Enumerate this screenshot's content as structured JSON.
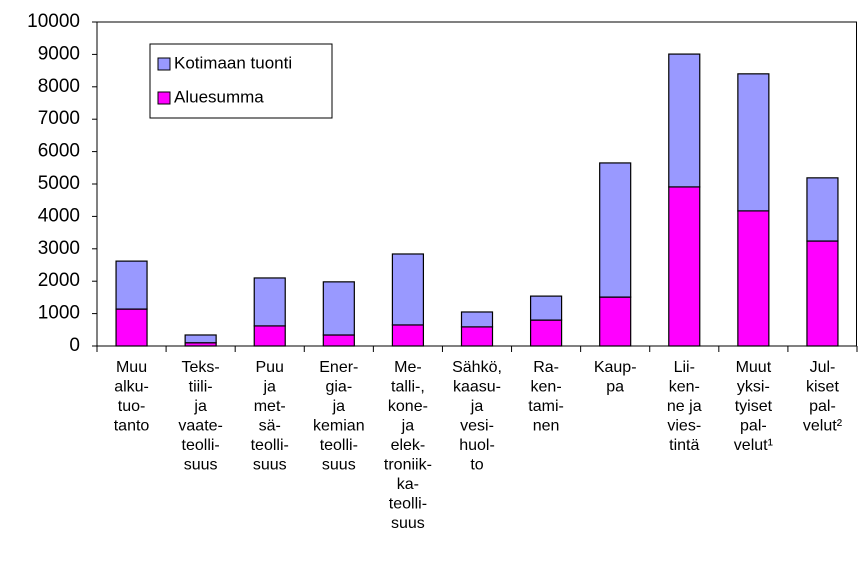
{
  "chart_data": {
    "type": "stacked_bar",
    "categories": [
      [
        "Muu",
        "alku-",
        "tuo-",
        "tanto"
      ],
      [
        "Teks-",
        "tiili-",
        "ja",
        "vaate-",
        "teolli-",
        "suus"
      ],
      [
        "Puu",
        "ja",
        "met-",
        "sä-",
        "teolli-",
        "suus"
      ],
      [
        "Ener-",
        "gia-",
        "ja",
        "kemian",
        "teolli-",
        "suus"
      ],
      [
        "Me-",
        "talli-,",
        "kone-",
        "ja",
        "elek-",
        "troniik-",
        "ka-",
        "teolli-",
        "suus"
      ],
      [
        "Sähkö,",
        "kaasu-",
        "ja",
        "vesi-",
        "huol-",
        "to"
      ],
      [
        "Ra-",
        "ken-",
        "tami-",
        "nen"
      ],
      [
        "Kaup-",
        "pa"
      ],
      [
        "Lii-",
        "ken-",
        "ne ja",
        "vies-",
        "tintä"
      ],
      [
        "Muut",
        "yksi-",
        "tyiset",
        "pal-",
        "velut¹"
      ],
      [
        "Jul-",
        "kiset",
        "pal-",
        "velut²"
      ]
    ],
    "series": [
      {
        "name": "Kotimaan tuonti",
        "color": "#9999ff",
        "values": [
          1480,
          240,
          1480,
          1640,
          2190,
          460,
          740,
          4140,
          4100,
          4230,
          1950
        ]
      },
      {
        "name": "Aluesumma",
        "color": "#ff00ff",
        "values": [
          1140,
          100,
          620,
          340,
          650,
          590,
          800,
          1510,
          4910,
          4170,
          3240
        ]
      }
    ],
    "ylim": [
      0,
      10000
    ],
    "yticks": [
      0,
      1000,
      2000,
      3000,
      4000,
      5000,
      6000,
      7000,
      8000,
      9000,
      10000
    ]
  }
}
